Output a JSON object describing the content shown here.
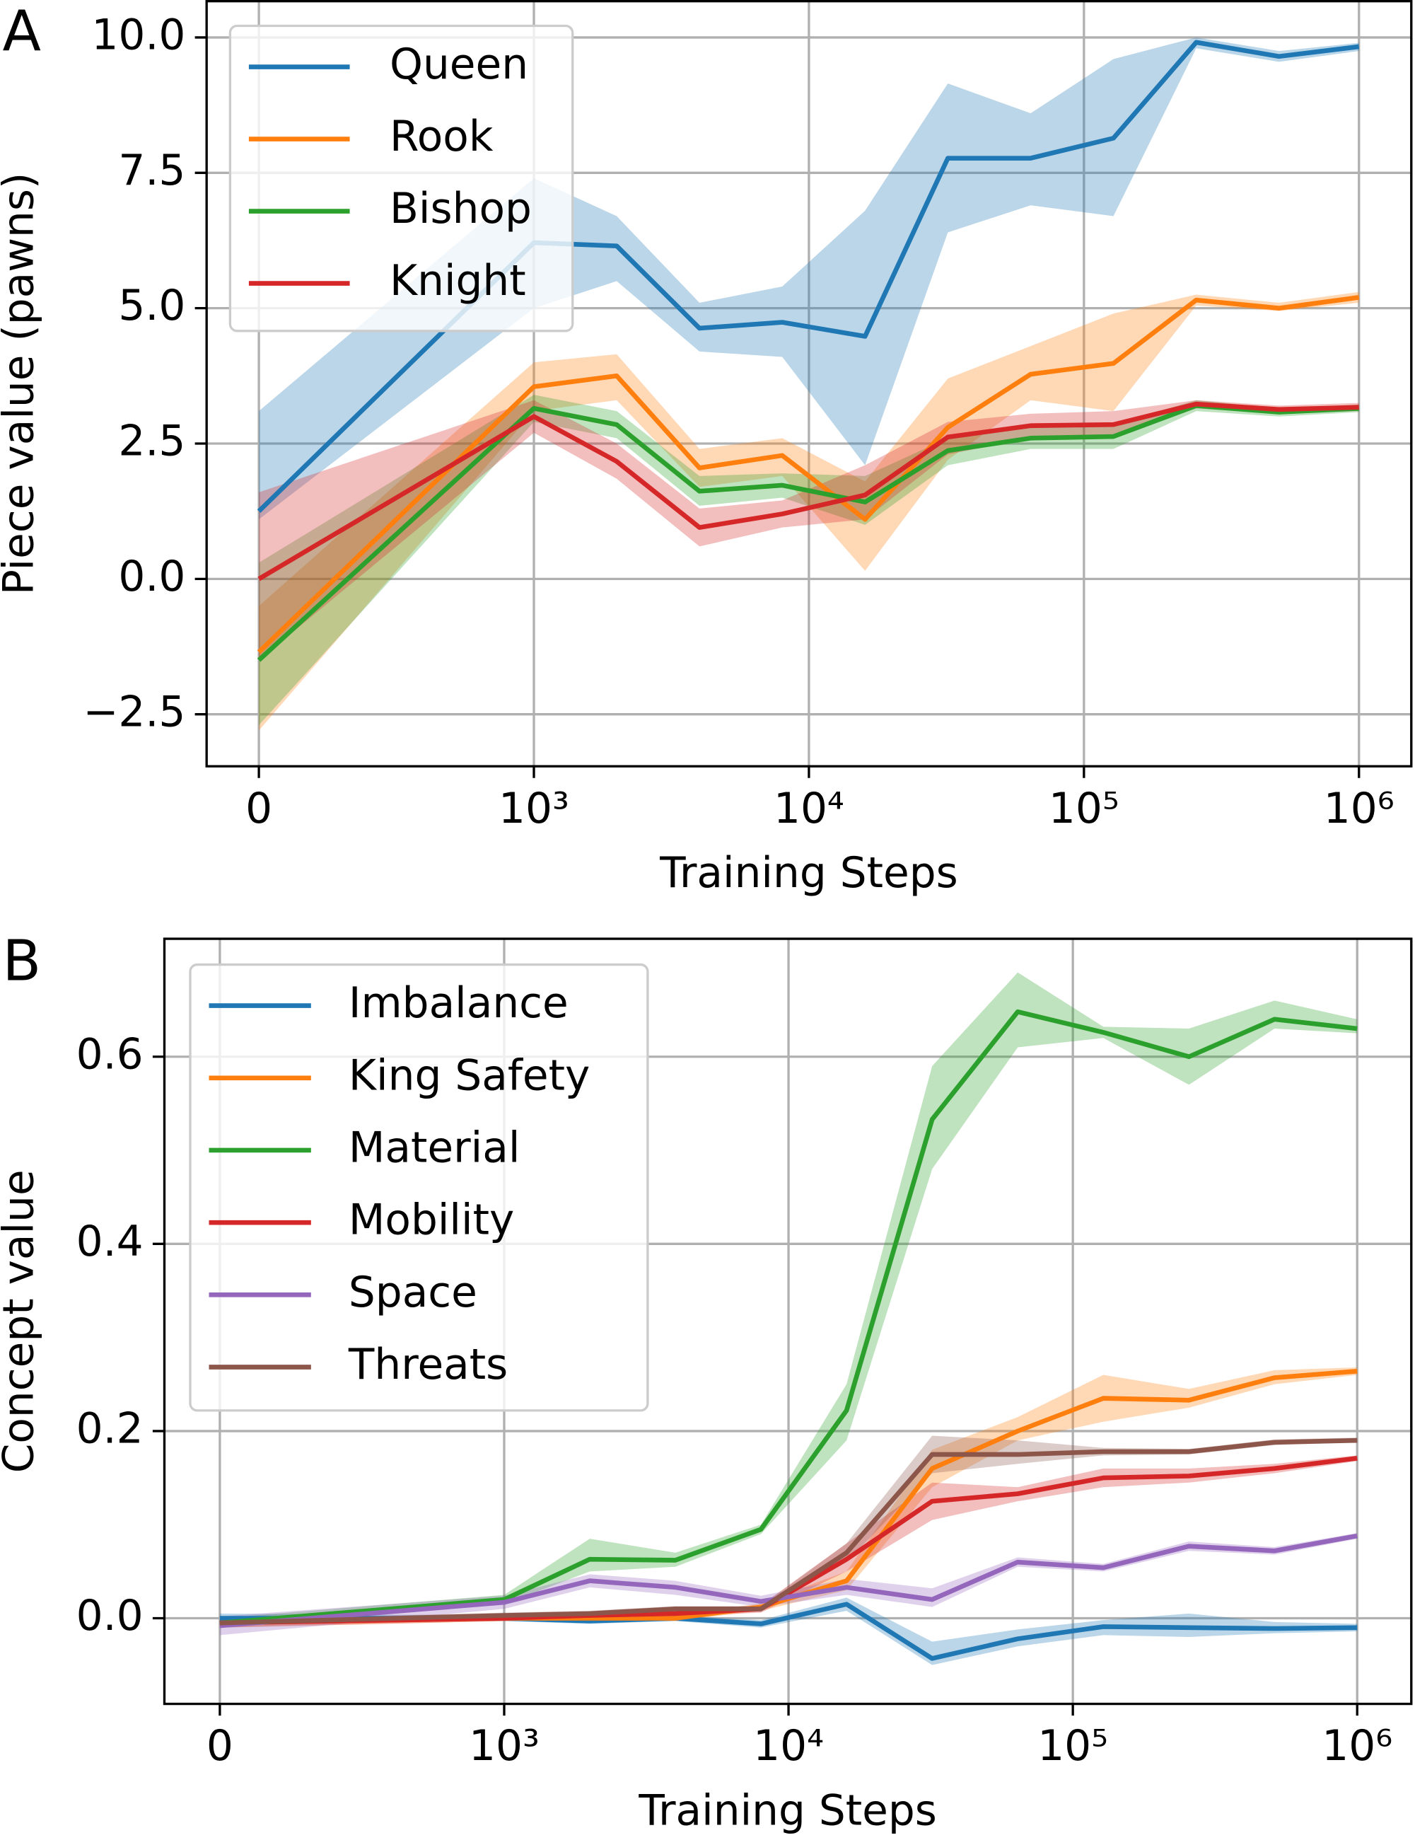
{
  "chart_data": [
    {
      "type": "line",
      "panel_label": "A",
      "xlabel": "Training Steps",
      "ylabel": "Piece value (pawns)",
      "xscale": "symlog",
      "linthresh": 1000,
      "grid": true,
      "legend": "upper left",
      "xlim": [
        -190,
        1550000
      ],
      "ylim": [
        -3.46,
        10.67
      ],
      "xticks": [
        0,
        {
          "value": 1000,
          "label": "10³"
        },
        {
          "value": 10000,
          "label": "10⁴"
        },
        {
          "value": 100000,
          "label": "10⁵"
        },
        {
          "value": 1000000,
          "label": "10⁶"
        }
      ],
      "yticks": [
        {
          "value": -2.5,
          "label": "−2.5"
        },
        {
          "value": 0,
          "label": "0.0"
        },
        2.5,
        {
          "value": 5,
          "label": "5.0"
        },
        7.5,
        {
          "value": 10,
          "label": "10.0"
        }
      ],
      "x": [
        0,
        1000,
        2000,
        4000,
        8000,
        16000,
        32000,
        64000,
        128000,
        256000,
        512000,
        1000000
      ],
      "series": [
        {
          "name": "Queen",
          "color": "#1f77b4",
          "values": [
            1.25,
            6.21,
            6.15,
            4.63,
            4.74,
            4.48,
            7.77,
            7.77,
            8.14,
            9.91,
            9.65,
            9.83
          ],
          "lower": [
            1.1,
            5.0,
            5.5,
            4.2,
            4.1,
            2.1,
            6.4,
            6.9,
            6.7,
            9.8,
            9.55,
            9.75
          ],
          "upper": [
            3.1,
            7.4,
            6.7,
            5.1,
            5.4,
            6.8,
            9.15,
            8.6,
            9.6,
            10.0,
            9.75,
            9.9
          ]
        },
        {
          "name": "Rook",
          "color": "#ff7f0e",
          "values": [
            -1.35,
            3.55,
            3.75,
            2.05,
            2.28,
            1.1,
            2.8,
            3.78,
            3.98,
            5.15,
            5.0,
            5.2
          ],
          "lower": [
            -2.8,
            3.1,
            3.3,
            1.7,
            1.9,
            0.15,
            2.2,
            3.3,
            3.1,
            5.05,
            4.95,
            5.1
          ],
          "upper": [
            -0.5,
            4.0,
            4.15,
            2.4,
            2.6,
            1.8,
            3.7,
            4.3,
            4.9,
            5.25,
            5.1,
            5.3
          ]
        },
        {
          "name": "Bishop",
          "color": "#2ca02c",
          "values": [
            -1.5,
            3.15,
            2.85,
            1.62,
            1.73,
            1.42,
            2.37,
            2.6,
            2.63,
            3.2,
            3.08,
            3.15
          ],
          "lower": [
            -2.7,
            2.9,
            2.6,
            1.35,
            1.5,
            1.0,
            2.1,
            2.4,
            2.4,
            3.1,
            3.0,
            3.08
          ],
          "upper": [
            0.3,
            3.4,
            3.1,
            1.9,
            1.95,
            1.9,
            2.6,
            2.8,
            2.85,
            3.3,
            3.15,
            3.22
          ]
        },
        {
          "name": "Knight",
          "color": "#d62728",
          "values": [
            0.0,
            3.0,
            2.17,
            0.95,
            1.2,
            1.55,
            2.62,
            2.83,
            2.85,
            3.23,
            3.13,
            3.17
          ],
          "lower": [
            -1.5,
            2.7,
            1.85,
            0.6,
            0.95,
            1.1,
            2.3,
            2.6,
            2.6,
            3.15,
            3.05,
            3.1
          ],
          "upper": [
            1.6,
            3.3,
            2.5,
            1.3,
            1.45,
            2.1,
            2.9,
            3.05,
            3.1,
            3.3,
            3.2,
            3.25
          ]
        }
      ]
    },
    {
      "type": "line",
      "panel_label": "B",
      "xlabel": "Training Steps",
      "ylabel": "Concept value",
      "xscale": "symlog",
      "linthresh": 1000,
      "grid": true,
      "legend": "upper left",
      "xlim": [
        -195,
        1550000
      ],
      "ylim": [
        -0.0915,
        0.726
      ],
      "xticks": [
        0,
        {
          "value": 1000,
          "label": "10³"
        },
        {
          "value": 10000,
          "label": "10⁴"
        },
        {
          "value": 100000,
          "label": "10⁵"
        },
        {
          "value": 1000000,
          "label": "10⁶"
        }
      ],
      "yticks": [
        {
          "value": 0,
          "label": "0.0"
        },
        0.2,
        0.4,
        0.6
      ],
      "x": [
        0,
        1000,
        2000,
        4000,
        8000,
        16000,
        32000,
        64000,
        128000,
        256000,
        512000,
        1000000
      ],
      "series": [
        {
          "name": "Imbalance",
          "color": "#1f77b4",
          "values": [
            0.0,
            0.0,
            -0.003,
            0.0,
            -0.006,
            0.015,
            -0.043,
            -0.022,
            -0.009,
            -0.01,
            -0.011,
            -0.01
          ],
          "lower": [
            -0.005,
            -0.003,
            -0.006,
            -0.003,
            -0.01,
            0.008,
            -0.05,
            -0.03,
            -0.018,
            -0.02,
            -0.016,
            -0.014
          ],
          "upper": [
            0.005,
            0.003,
            0.0,
            0.003,
            -0.002,
            0.022,
            -0.025,
            -0.012,
            -0.002,
            0.005,
            -0.004,
            -0.006
          ]
        },
        {
          "name": "King Safety",
          "color": "#ff7f0e",
          "values": [
            -0.005,
            0.0,
            0.0,
            0.0,
            0.012,
            0.04,
            0.16,
            0.2,
            0.235,
            0.233,
            0.257,
            0.264
          ],
          "lower": [
            -0.01,
            -0.003,
            -0.003,
            -0.003,
            0.008,
            0.03,
            0.14,
            0.19,
            0.21,
            0.225,
            0.25,
            0.26
          ],
          "upper": [
            0.0,
            0.003,
            0.003,
            0.003,
            0.016,
            0.05,
            0.18,
            0.215,
            0.26,
            0.245,
            0.265,
            0.268
          ]
        },
        {
          "name": "Material",
          "color": "#2ca02c",
          "values": [
            -0.005,
            0.02,
            0.063,
            0.062,
            0.095,
            0.222,
            0.533,
            0.648,
            0.626,
            0.6,
            0.64,
            0.63
          ],
          "lower": [
            -0.01,
            0.015,
            0.05,
            0.055,
            0.09,
            0.19,
            0.48,
            0.61,
            0.62,
            0.57,
            0.63,
            0.625
          ],
          "upper": [
            0.0,
            0.025,
            0.085,
            0.07,
            0.1,
            0.25,
            0.59,
            0.69,
            0.632,
            0.63,
            0.66,
            0.64
          ]
        },
        {
          "name": "Mobility",
          "color": "#d62728",
          "values": [
            -0.005,
            0.0,
            0.003,
            0.005,
            0.01,
            0.063,
            0.125,
            0.133,
            0.15,
            0.152,
            0.16,
            0.171
          ],
          "lower": [
            -0.01,
            -0.003,
            0.0,
            0.002,
            0.006,
            0.05,
            0.105,
            0.125,
            0.14,
            0.145,
            0.155,
            0.168
          ],
          "upper": [
            0.0,
            0.003,
            0.006,
            0.008,
            0.014,
            0.08,
            0.145,
            0.14,
            0.16,
            0.16,
            0.165,
            0.174
          ]
        },
        {
          "name": "Space",
          "color": "#9467bd",
          "values": [
            -0.008,
            0.017,
            0.04,
            0.033,
            0.018,
            0.033,
            0.02,
            0.06,
            0.054,
            0.077,
            0.072,
            0.088
          ],
          "lower": [
            -0.018,
            0.01,
            0.033,
            0.025,
            0.012,
            0.025,
            0.012,
            0.055,
            0.05,
            0.072,
            0.068,
            0.085
          ],
          "upper": [
            0.002,
            0.024,
            0.047,
            0.04,
            0.024,
            0.042,
            0.032,
            0.065,
            0.058,
            0.082,
            0.076,
            0.091
          ]
        },
        {
          "name": "Threats",
          "color": "#8c564b",
          "values": [
            -0.005,
            0.003,
            0.005,
            0.01,
            0.01,
            0.07,
            0.175,
            0.175,
            0.178,
            0.178,
            0.188,
            0.19
          ],
          "lower": [
            -0.008,
            0.0,
            0.002,
            0.007,
            0.007,
            0.06,
            0.155,
            0.165,
            0.174,
            0.175,
            0.185,
            0.188
          ],
          "upper": [
            -0.002,
            0.006,
            0.008,
            0.013,
            0.013,
            0.08,
            0.195,
            0.19,
            0.182,
            0.181,
            0.191,
            0.193
          ]
        }
      ]
    }
  ]
}
